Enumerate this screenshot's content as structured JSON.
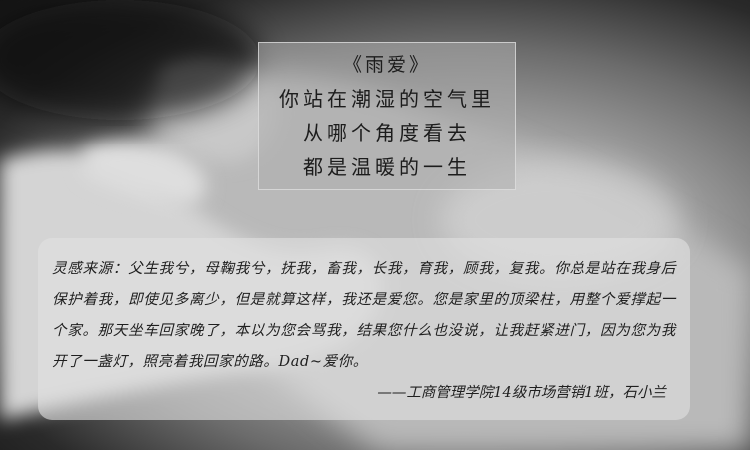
{
  "poem": {
    "title": "《雨爱》",
    "lines": [
      "你站在潮湿的空气里",
      "从哪个角度看去",
      "都是温暖的一生"
    ]
  },
  "note": {
    "text": "灵感来源：父生我兮，母鞠我兮，抚我，畜我，长我，育我，顾我，复我。你总是站在我身后保护着我，即使见多离少，但是就算这样，我还是爱您。您是家里的顶梁柱，用整个爱撑起一个家。那天坐车回家晚了，本以为您会骂我，结果您什么也没说，让我赶紧进门，因为您为我开了一盏灯，照亮着我回家的路。Dad~爱你。",
    "signature": "——工商管理学院14级市场营销1班，石小兰"
  }
}
